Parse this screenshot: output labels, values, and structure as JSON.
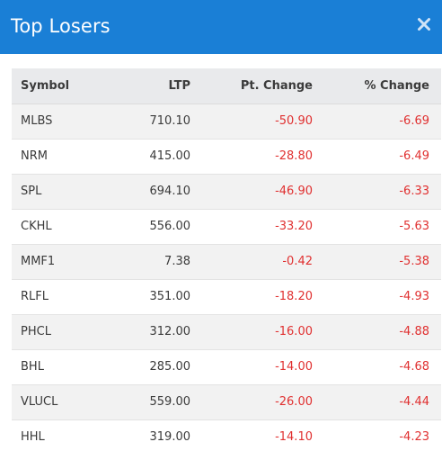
{
  "modal": {
    "title": "Top Losers",
    "close_icon": "close-icon"
  },
  "colors": {
    "header_bg": "#1a7fd6",
    "negative": "#e03030",
    "table_header_bg": "#e9eaec",
    "row_stripe": "#f2f2f2"
  },
  "table": {
    "headers": {
      "symbol": "Symbol",
      "ltp": "LTP",
      "pt_change": "Pt. Change",
      "pct_change": "% Change"
    },
    "rows": [
      {
        "symbol": "MLBS",
        "ltp": "710.10",
        "pt_change": "-50.90",
        "pct_change": "-6.69"
      },
      {
        "symbol": "NRM",
        "ltp": "415.00",
        "pt_change": "-28.80",
        "pct_change": "-6.49"
      },
      {
        "symbol": "SPL",
        "ltp": "694.10",
        "pt_change": "-46.90",
        "pct_change": "-6.33"
      },
      {
        "symbol": "CKHL",
        "ltp": "556.00",
        "pt_change": "-33.20",
        "pct_change": "-5.63"
      },
      {
        "symbol": "MMF1",
        "ltp": "7.38",
        "pt_change": "-0.42",
        "pct_change": "-5.38"
      },
      {
        "symbol": "RLFL",
        "ltp": "351.00",
        "pt_change": "-18.20",
        "pct_change": "-4.93"
      },
      {
        "symbol": "PHCL",
        "ltp": "312.00",
        "pt_change": "-16.00",
        "pct_change": "-4.88"
      },
      {
        "symbol": "BHL",
        "ltp": "285.00",
        "pt_change": "-14.00",
        "pct_change": "-4.68"
      },
      {
        "symbol": "VLUCL",
        "ltp": "559.00",
        "pt_change": "-26.00",
        "pct_change": "-4.44"
      },
      {
        "symbol": "HHL",
        "ltp": "319.00",
        "pt_change": "-14.10",
        "pct_change": "-4.23"
      }
    ]
  }
}
